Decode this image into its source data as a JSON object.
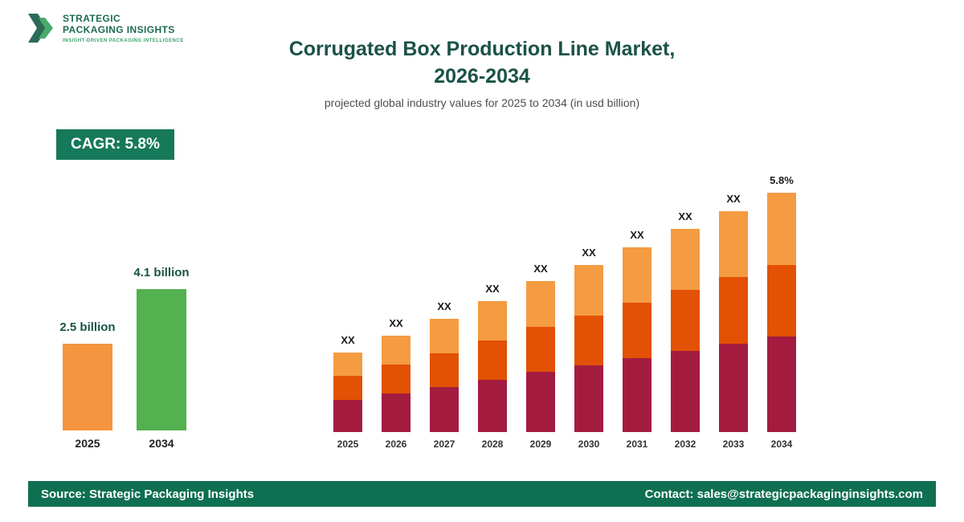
{
  "logo": {
    "line1": "STRATEGIC",
    "line2": "PACKAGING INSIGHTS",
    "tagline": "INSIGHT-DRIVEN PACKAGING INTELLIGENCE"
  },
  "header": {
    "title_line1": "Corrugated Box Production Line Market,",
    "title_line2": "2026-2034",
    "subtitle": "projected global industry values for 2025 to 2034 (in usd billion)"
  },
  "cagr_badge": {
    "label": "CAGR: 5.8%"
  },
  "colors": {
    "brand_green_dark": "#1d6b50",
    "title_teal": "#1b5247",
    "badge_green": "#16795a",
    "footer_green": "#0e6f51",
    "mini_orange": "#f5953f",
    "mini_green": "#53b150",
    "bar_bottom_maroon": "#a31c40",
    "bar_middle_orangered": "#e25104",
    "bar_top_lightorange": "#f59b42"
  },
  "chart_data": [
    {
      "type": "bar",
      "title": "2025 vs 2034 market size",
      "categories": [
        "2025",
        "2034"
      ],
      "values": [
        2.5,
        4.1
      ],
      "labels": [
        "2.5 billion",
        "4.1 billion"
      ],
      "colors": [
        "#f5953f",
        "#53b150"
      ],
      "units": "usd billion"
    },
    {
      "type": "bar",
      "subtype": "stacked",
      "title": "Corrugated Box Production Line Market, 2026-2034",
      "categories": [
        "2025",
        "2026",
        "2027",
        "2028",
        "2029",
        "2030",
        "2031",
        "2032",
        "2033",
        "2034"
      ],
      "bar_labels": [
        "XX",
        "XX",
        "XX",
        "XX",
        "XX",
        "XX",
        "XX",
        "XX",
        "XX",
        "5.8%"
      ],
      "units": "relative heights (actual values masked as XX in source image)",
      "series": [
        {
          "name": "segment-bottom",
          "color": "#a31c40",
          "values": [
            40,
            48,
            56,
            65,
            75,
            83,
            92,
            101,
            110,
            119
          ]
        },
        {
          "name": "segment-middle",
          "color": "#e25104",
          "values": [
            30,
            36,
            42,
            49,
            56,
            62,
            69,
            76,
            83,
            89
          ]
        },
        {
          "name": "segment-top",
          "color": "#f59b42",
          "values": [
            29,
            36,
            43,
            49,
            57,
            63,
            69,
            76,
            82,
            90
          ]
        }
      ],
      "legend": "none",
      "grid": false
    }
  ],
  "footer": {
    "source": "Source: Strategic Packaging Insights",
    "contact": "Contact: sales@strategicpackaginginsights.com"
  }
}
